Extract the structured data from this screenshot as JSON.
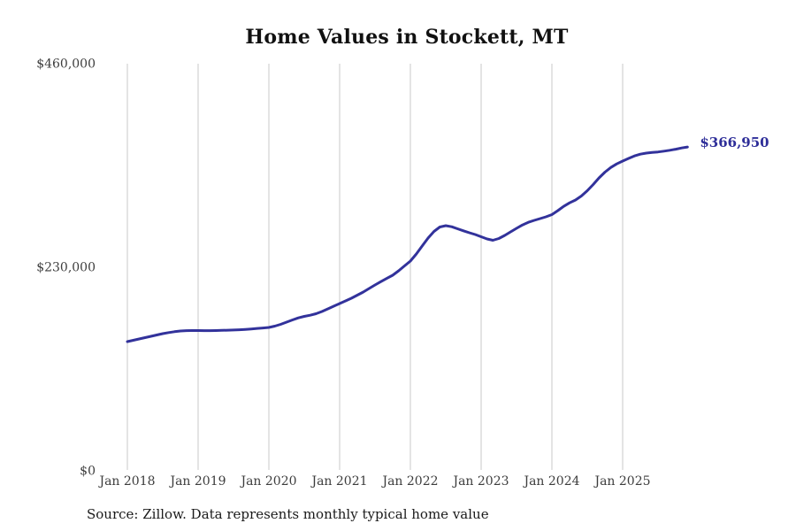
{
  "page": {
    "background": "#ffffff"
  },
  "chart_data": {
    "type": "line",
    "title": "Home Values in Stockett, MT",
    "source_note": "Source: Zillow. Data represents monthly typical home value",
    "end_label": "$366,950",
    "last_value": 366950,
    "ylim": [
      0,
      460000
    ],
    "y_ticks": [
      {
        "label": "$0",
        "value": 0
      },
      {
        "label": "$230,000",
        "value": 230000
      },
      {
        "label": "$460,000",
        "value": 460000
      }
    ],
    "x_ticks": [
      {
        "label": "Jan 2018",
        "month_index": 0
      },
      {
        "label": "Jan 2019",
        "month_index": 12
      },
      {
        "label": "Jan 2020",
        "month_index": 24
      },
      {
        "label": "Jan 2021",
        "month_index": 36
      },
      {
        "label": "Jan 2022",
        "month_index": 48
      },
      {
        "label": "Jan 2023",
        "month_index": 60
      },
      {
        "label": "Jan 2024",
        "month_index": 72
      },
      {
        "label": "Jan 2025",
        "month_index": 84
      }
    ],
    "series": [
      {
        "name": "Monthly typical home value",
        "start_month": "Jan 2018",
        "interval": "monthly",
        "values": [
          147000,
          148500,
          150000,
          151500,
          153000,
          154500,
          156000,
          157200,
          158200,
          159000,
          159400,
          159500,
          159500,
          159400,
          159400,
          159500,
          159700,
          159900,
          160100,
          160400,
          160800,
          161300,
          161900,
          162400,
          163000,
          164500,
          166500,
          169000,
          171500,
          173800,
          175500,
          176800,
          178500,
          181000,
          184000,
          187000,
          190000,
          193000,
          196000,
          199500,
          203000,
          207000,
          211000,
          214800,
          218400,
          222000,
          227000,
          232500,
          238000,
          246000,
          255000,
          264000,
          271500,
          276500,
          278000,
          276800,
          274500,
          272200,
          270000,
          268000,
          265500,
          263000,
          261500,
          263500,
          267000,
          271000,
          275000,
          278800,
          281800,
          284000,
          286000,
          288000,
          290500,
          295000,
          299800,
          303800,
          307000,
          311500,
          317500,
          324500,
          332000,
          338500,
          343800,
          347800,
          351000,
          354000,
          356800,
          358800,
          360000,
          360700,
          361300,
          362200,
          363200,
          364400,
          365800,
          366950
        ]
      }
    ],
    "grid": "vertical-only",
    "legend": "none",
    "colors": {
      "line": "#32329b",
      "end_label": "#2e2e99",
      "grid": "#c9c9c9",
      "tick_text": "#3d3d3d",
      "title_text": "#111111",
      "source_text": "#1a1a1a"
    }
  }
}
